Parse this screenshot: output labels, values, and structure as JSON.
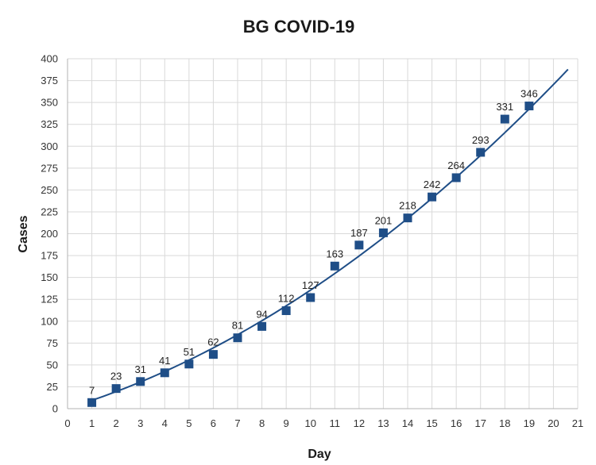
{
  "chart_data": {
    "type": "scatter",
    "title": "BG COVID-19",
    "xlabel": "Day",
    "ylabel": "Cases",
    "xlim": [
      0,
      21
    ],
    "ylim": [
      0,
      400
    ],
    "x_ticks": [
      0,
      1,
      2,
      3,
      4,
      5,
      6,
      7,
      8,
      9,
      10,
      11,
      12,
      13,
      14,
      15,
      16,
      17,
      18,
      19,
      20,
      21
    ],
    "y_ticks": [
      0,
      25,
      50,
      75,
      100,
      125,
      150,
      175,
      200,
      225,
      250,
      275,
      300,
      325,
      350,
      375,
      400
    ],
    "grid": true,
    "series": [
      {
        "x": [
          1,
          2,
          3,
          4,
          5,
          6,
          7,
          8,
          9,
          10,
          11,
          12,
          13,
          14,
          15,
          16,
          17,
          18,
          19
        ],
        "values": [
          7,
          23,
          31,
          41,
          51,
          62,
          81,
          94,
          112,
          127,
          163,
          187,
          201,
          218,
          242,
          264,
          293,
          331,
          346
        ],
        "data_labels": [
          "7",
          "23",
          "31",
          "41",
          "51",
          "62",
          "81",
          "94",
          "112",
          "127",
          "163",
          "187",
          "201",
          "218",
          "242",
          "264",
          "293",
          "331",
          "346"
        ],
        "marker": "square",
        "color": "#1f4e87"
      }
    ],
    "trendline": {
      "type": "polynomial",
      "color": "#1f4e87",
      "x_range": [
        1,
        20.6
      ],
      "coefficients": [
        0.5,
        8.5,
        0.5
      ]
    }
  }
}
